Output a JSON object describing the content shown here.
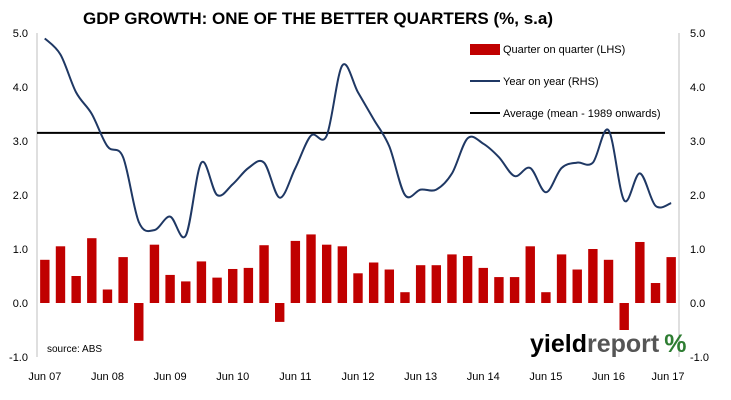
{
  "chart_data": {
    "type": "bar+line",
    "title": "GDP GROWTH: ONE OF THE BETTER QUARTERS (%, s.a)",
    "source": "source: ABS",
    "brand": {
      "part1": "yield",
      "part2": "report",
      "symbol": "%"
    },
    "colors": {
      "bars": "#c00000",
      "line": "#1f3864",
      "average": "#000000",
      "brand_green": "#2e7d32"
    },
    "x_ticks": [
      "Jun 07",
      "Jun 08",
      "Jun 09",
      "Jun 10",
      "Jun 11",
      "Jun 12",
      "Jun 13",
      "Jun 14",
      "Jun 15",
      "Jun 16",
      "Jun 17"
    ],
    "y_left": {
      "ticks": [
        "5.0",
        "4.0",
        "3.0",
        "2.0",
        "1.0",
        "0.0",
        "-1.0"
      ],
      "lim": [
        -1.0,
        5.0
      ]
    },
    "y_right": {
      "ticks": [
        "5.0",
        "4.0",
        "3.0",
        "2.0",
        "1.0",
        "0.0",
        "-1.0"
      ],
      "lim": [
        -1.0,
        5.0
      ]
    },
    "legend_position": "top-right",
    "grid": false,
    "series": [
      {
        "name": "Quarter on quarter (LHS)",
        "kind": "bar",
        "axis": "left",
        "values": [
          0.8,
          1.05,
          0.5,
          1.2,
          0.25,
          0.85,
          -0.7,
          1.08,
          0.52,
          0.4,
          0.77,
          0.47,
          0.63,
          0.65,
          1.07,
          -0.35,
          1.15,
          1.27,
          1.08,
          1.05,
          0.55,
          0.75,
          0.62,
          0.2,
          0.7,
          0.7,
          0.9,
          0.87,
          0.65,
          0.48,
          0.48,
          1.05,
          0.2,
          0.9,
          0.62,
          1.0,
          0.8,
          -0.5,
          1.13,
          0.37,
          0.85
        ]
      },
      {
        "name": "Year on year (RHS)",
        "kind": "line",
        "axis": "right",
        "values": [
          4.9,
          4.6,
          3.9,
          3.5,
          2.9,
          2.7,
          1.5,
          1.35,
          1.6,
          1.25,
          2.6,
          2.0,
          2.2,
          2.5,
          2.6,
          1.95,
          2.5,
          3.1,
          3.1,
          4.4,
          3.9,
          3.4,
          2.9,
          2.0,
          2.1,
          2.1,
          2.4,
          3.05,
          2.95,
          2.7,
          2.35,
          2.5,
          2.05,
          2.5,
          2.6,
          2.6,
          3.2,
          1.9,
          2.4,
          1.8,
          1.85
        ]
      },
      {
        "name": "Average (mean - 1989 onwards)",
        "kind": "hline",
        "axis": "left",
        "value": 3.15
      }
    ]
  }
}
